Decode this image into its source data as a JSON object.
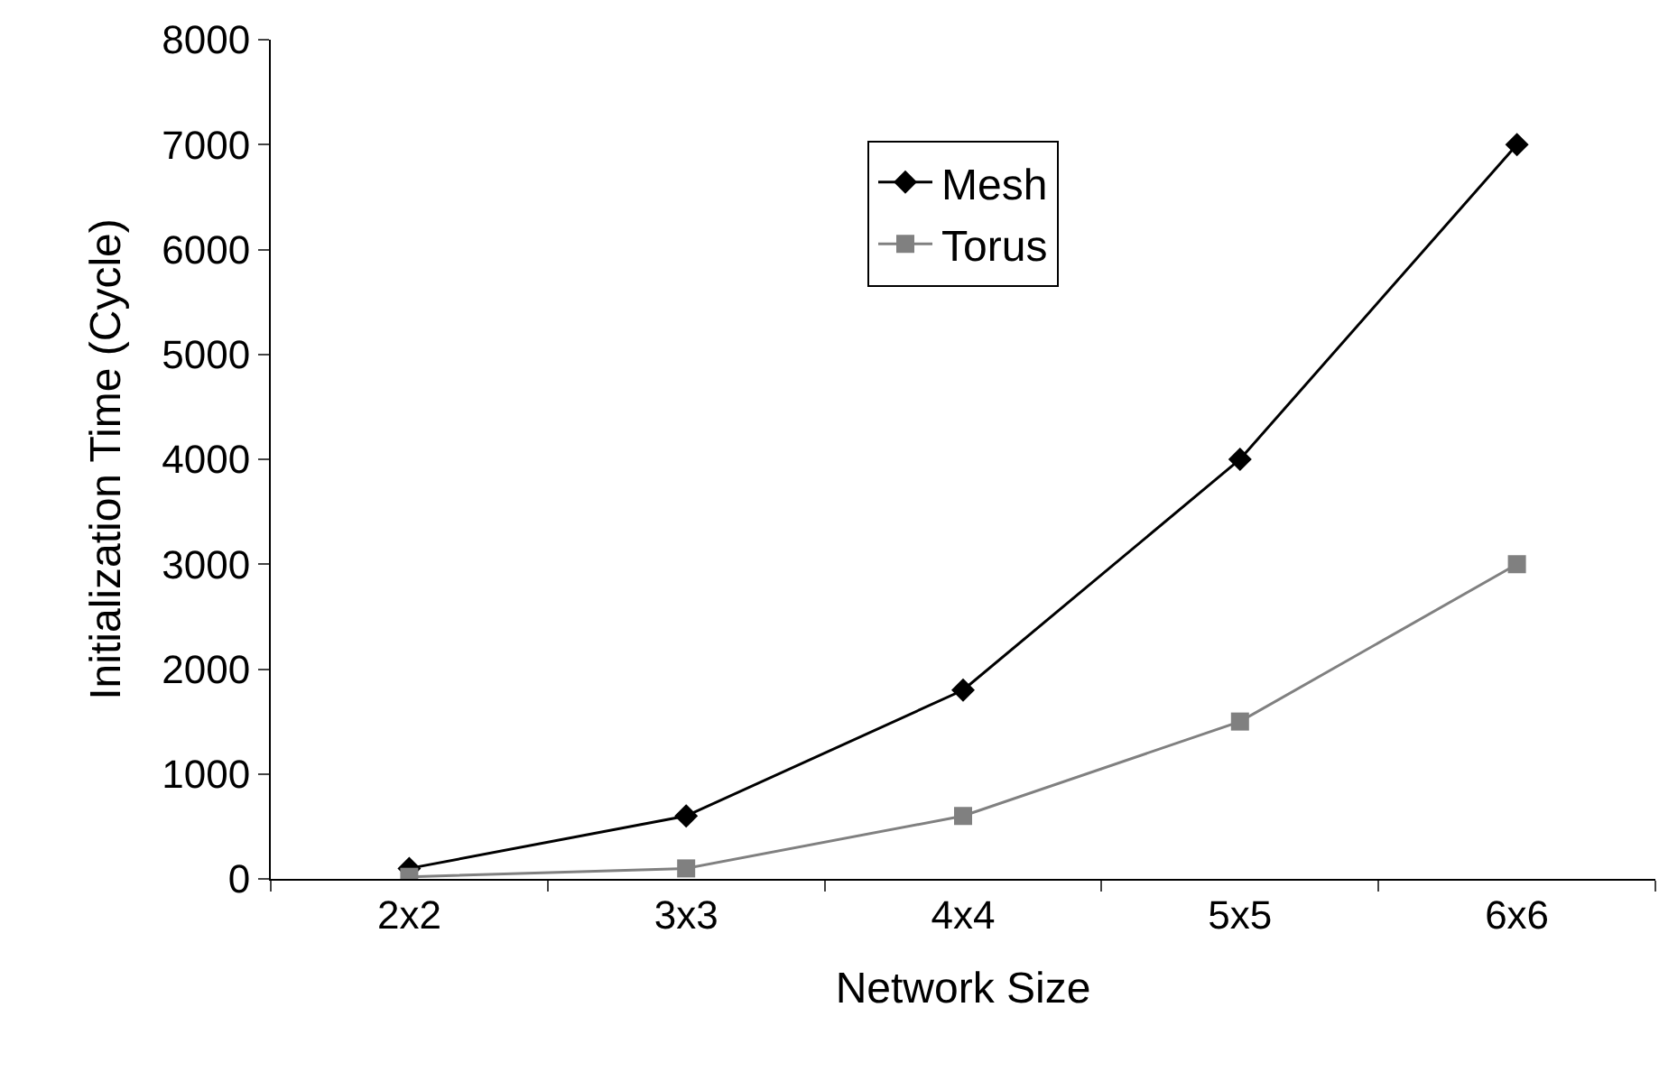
{
  "chart_data": {
    "type": "line",
    "xlabel": "Network Size",
    "ylabel": "Initialization Time (Cycle)",
    "categories": [
      "2x2",
      "3x3",
      "4x4",
      "5x5",
      "6x6"
    ],
    "series": [
      {
        "name": "Mesh",
        "color": "#000000",
        "marker": "diamond",
        "values": [
          100,
          600,
          1800,
          4000,
          7000
        ]
      },
      {
        "name": "Torus",
        "color": "#808080",
        "marker": "square",
        "values": [
          20,
          100,
          600,
          1500,
          3000
        ]
      }
    ],
    "ylim": [
      0,
      8000
    ],
    "yticks": [
      0,
      1000,
      2000,
      3000,
      4000,
      5000,
      6000,
      7000,
      8000
    ],
    "grid": false,
    "legend": "top",
    "line_style": "solid"
  }
}
